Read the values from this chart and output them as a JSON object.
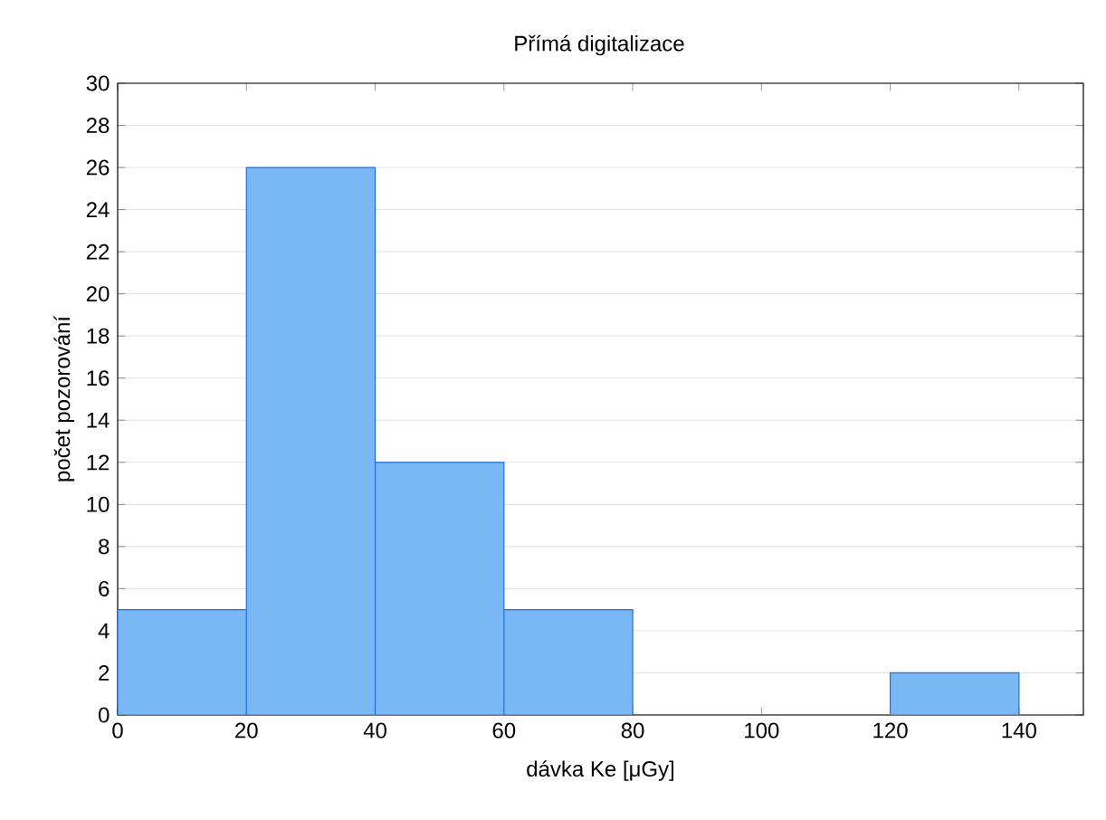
{
  "chart_data": {
    "type": "histogram",
    "title": "Přímá digitalizace",
    "xlabel": "dávka Ke [μGy]",
    "ylabel": "počet pozorování",
    "bins": [
      0,
      20,
      40,
      60,
      80,
      100,
      120,
      140
    ],
    "values": [
      5,
      26,
      12,
      5,
      0,
      0,
      2
    ],
    "color": "#7ab8f5",
    "xlim": [
      0,
      150
    ],
    "xticks": [
      0,
      20,
      40,
      60,
      80,
      100,
      120,
      140
    ],
    "ylim": [
      0,
      30
    ],
    "yticks": [
      0,
      2,
      4,
      6,
      8,
      10,
      12,
      14,
      16,
      18,
      20,
      22,
      24,
      26,
      28,
      30
    ],
    "grid": "y"
  }
}
